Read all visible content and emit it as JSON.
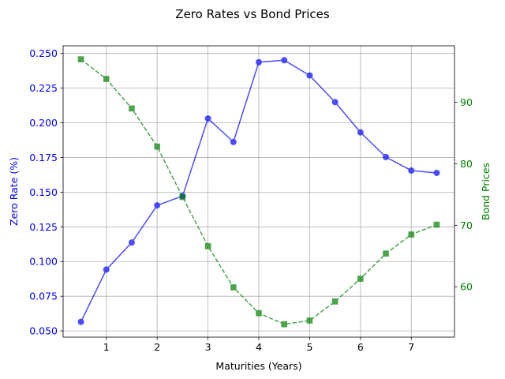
{
  "chart_data": {
    "type": "line",
    "title": "Zero Rates vs Bond Prices",
    "xlabel": "Maturities (Years)",
    "ylabel_left": "Zero Rate (%)",
    "ylabel_right": "Bond Prices",
    "xlim": [
      0.15,
      7.85
    ],
    "ylim_left": [
      0.0455,
      0.2555
    ],
    "ylim_right": [
      51.8,
      99.2
    ],
    "x_ticks": [
      1,
      2,
      3,
      4,
      5,
      6,
      7
    ],
    "x_tick_labels": [
      "1",
      "2",
      "3",
      "4",
      "5",
      "6",
      "7"
    ],
    "y_ticks_left": [
      0.05,
      0.075,
      0.1,
      0.125,
      0.15,
      0.175,
      0.2,
      0.225,
      0.25
    ],
    "y_tick_labels_left": [
      "0.050",
      "0.075",
      "0.100",
      "0.125",
      "0.150",
      "0.175",
      "0.200",
      "0.225",
      "0.250"
    ],
    "y_ticks_right": [
      60,
      70,
      80,
      90
    ],
    "y_tick_labels_right": [
      "60",
      "70",
      "80",
      "90"
    ],
    "grid": true,
    "x": [
      0.5,
      1.0,
      1.5,
      2.0,
      2.5,
      3.0,
      3.5,
      4.0,
      4.5,
      5.0,
      5.5,
      6.0,
      6.5,
      7.0,
      7.5
    ],
    "series": [
      {
        "axis": "left",
        "color": "#0000ff",
        "marker": "circle",
        "linestyle": "solid",
        "values": [
          0.0565,
          0.0942,
          0.1137,
          0.1405,
          0.1472,
          0.2031,
          0.1862,
          0.2437,
          0.2451,
          0.2341,
          0.2149,
          0.1931,
          0.1753,
          0.1656,
          0.1639
        ]
      },
      {
        "axis": "right",
        "color": "#008000",
        "marker": "square",
        "linestyle": "dashed",
        "values": [
          97.0,
          93.8,
          89.0,
          82.8,
          74.6,
          66.6,
          59.9,
          55.7,
          53.9,
          54.5,
          57.6,
          61.3,
          65.4,
          68.5,
          70.1
        ]
      }
    ],
    "colors": {
      "left_axis": "#0000ff",
      "right_axis": "#008000",
      "grid": "#b0b0b0"
    }
  }
}
